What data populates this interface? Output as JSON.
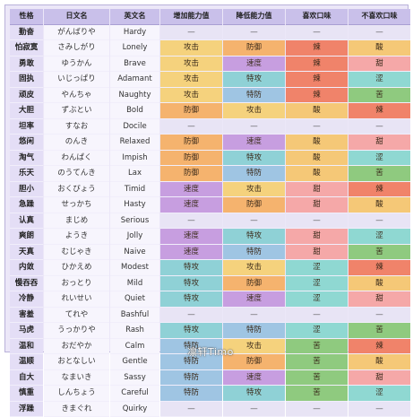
{
  "headers": [
    "性格",
    "日文名",
    "英文名",
    "增加能力值",
    "降低能力值",
    "喜欢口味",
    "不喜欢口味"
  ],
  "colors": {
    "攻击": "#f5d27d",
    "防御": "#f5b36e",
    "特攻": "#8fd1d6",
    "特防": "#9fc5e3",
    "速度": "#c79ee0",
    "辣": "#f0836a",
    "酸": "#f5c877",
    "涩": "#8fd8d2",
    "苦": "#8fca7f",
    "甜": "#f5a8a8",
    "—": "#e8e4f5"
  },
  "rows": [
    {
      "name": "勤奋",
      "jp": "がんばりや",
      "en": "Hardy",
      "inc": "—",
      "dec": "—",
      "like": "—",
      "dislike": "—"
    },
    {
      "name": "怕寂寞",
      "jp": "さみしがり",
      "en": "Lonely",
      "inc": "攻击",
      "dec": "防御",
      "like": "辣",
      "dislike": "酸"
    },
    {
      "name": "勇敢",
      "jp": "ゆうかん",
      "en": "Brave",
      "inc": "攻击",
      "dec": "速度",
      "like": "辣",
      "dislike": "甜"
    },
    {
      "name": "固执",
      "jp": "いじっぱり",
      "en": "Adamant",
      "inc": "攻击",
      "dec": "特攻",
      "like": "辣",
      "dislike": "涩"
    },
    {
      "name": "顽皮",
      "jp": "やんちゃ",
      "en": "Naughty",
      "inc": "攻击",
      "dec": "特防",
      "like": "辣",
      "dislike": "苦"
    },
    {
      "name": "大胆",
      "jp": "ずぶとい",
      "en": "Bold",
      "inc": "防御",
      "dec": "攻击",
      "like": "酸",
      "dislike": "辣"
    },
    {
      "name": "坦率",
      "jp": "すなお",
      "en": "Docile",
      "inc": "—",
      "dec": "—",
      "like": "—",
      "dislike": "—"
    },
    {
      "name": "悠闲",
      "jp": "のんき",
      "en": "Relaxed",
      "inc": "防御",
      "dec": "速度",
      "like": "酸",
      "dislike": "甜"
    },
    {
      "name": "淘气",
      "jp": "わんぱく",
      "en": "Impish",
      "inc": "防御",
      "dec": "特攻",
      "like": "酸",
      "dislike": "涩"
    },
    {
      "name": "乐天",
      "jp": "のうてんき",
      "en": "Lax",
      "inc": "防御",
      "dec": "特防",
      "like": "酸",
      "dislike": "苦"
    },
    {
      "name": "胆小",
      "jp": "おくびょう",
      "en": "Timid",
      "inc": "速度",
      "dec": "攻击",
      "like": "甜",
      "dislike": "辣"
    },
    {
      "name": "急躁",
      "jp": "せっかち",
      "en": "Hasty",
      "inc": "速度",
      "dec": "防御",
      "like": "甜",
      "dislike": "酸"
    },
    {
      "name": "认真",
      "jp": "まじめ",
      "en": "Serious",
      "inc": "—",
      "dec": "—",
      "like": "—",
      "dislike": "—"
    },
    {
      "name": "爽朗",
      "jp": "ようき",
      "en": "Jolly",
      "inc": "速度",
      "dec": "特攻",
      "like": "甜",
      "dislike": "涩"
    },
    {
      "name": "天真",
      "jp": "むじゃき",
      "en": "Naive",
      "inc": "速度",
      "dec": "特防",
      "like": "甜",
      "dislike": "苦"
    },
    {
      "name": "内敛",
      "jp": "ひかえめ",
      "en": "Modest",
      "inc": "特攻",
      "dec": "攻击",
      "like": "涩",
      "dislike": "辣"
    },
    {
      "name": "慢吞吞",
      "jp": "おっとり",
      "en": "Mild",
      "inc": "特攻",
      "dec": "防御",
      "like": "涩",
      "dislike": "酸"
    },
    {
      "name": "冷静",
      "jp": "れいせい",
      "en": "Quiet",
      "inc": "特攻",
      "dec": "速度",
      "like": "涩",
      "dislike": "甜"
    },
    {
      "name": "害羞",
      "jp": "てれや",
      "en": "Bashful",
      "inc": "—",
      "dec": "—",
      "like": "—",
      "dislike": "—"
    },
    {
      "name": "马虎",
      "jp": "うっかりや",
      "en": "Rash",
      "inc": "特攻",
      "dec": "特防",
      "like": "涩",
      "dislike": "苦"
    },
    {
      "name": "温和",
      "jp": "おだやか",
      "en": "Calm",
      "inc": "特防",
      "dec": "攻击",
      "like": "苦",
      "dislike": "辣"
    },
    {
      "name": "温顺",
      "jp": "おとなしい",
      "en": "Gentle",
      "inc": "特防",
      "dec": "防御",
      "like": "苦",
      "dislike": "酸"
    },
    {
      "name": "自大",
      "jp": "なまいき",
      "en": "Sassy",
      "inc": "特防",
      "dec": "速度",
      "like": "苦",
      "dislike": "甜"
    },
    {
      "name": "慎重",
      "jp": "しんちょう",
      "en": "Careful",
      "inc": "特防",
      "dec": "特攻",
      "like": "苦",
      "dislike": "涩"
    },
    {
      "name": "浮躁",
      "jp": "きまぐれ",
      "en": "Quirky",
      "inc": "—",
      "dec": "—",
      "like": "—",
      "dislike": "—"
    }
  ],
  "watermark": "凛轩Timo"
}
